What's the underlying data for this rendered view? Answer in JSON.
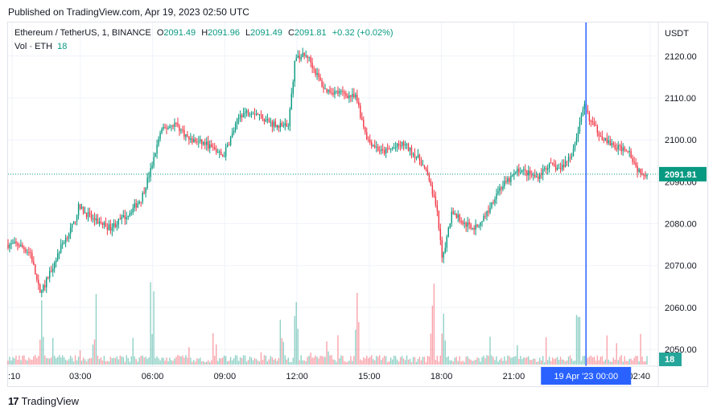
{
  "header": {
    "published": "Published on TradingView.com, Apr 19, 2023 02:50 UTC"
  },
  "legend": {
    "symbol": "Ethereum / TetherUS, 1, BINANCE",
    "open_label": "O",
    "open": "2091.49",
    "high_label": "H",
    "high": "2091.96",
    "low_label": "L",
    "low": "2091.49",
    "close_label": "C",
    "close": "2091.81",
    "change": "+0.32 (+0.02%)",
    "vol_label": "Vol · ETH",
    "vol_value": "18"
  },
  "footer": {
    "brand": "TradingView",
    "logo_text": "17"
  },
  "colors": {
    "up": "#089981",
    "down": "#f23645",
    "crosshair": "#2962ff",
    "grid": "#f0f3fa"
  },
  "chart_data": {
    "type": "candlestick",
    "currency": "USDT",
    "y_ticks": [
      "2120.00",
      "2110.00",
      "2100.00",
      "2090.00",
      "2080.00",
      "2070.00",
      "2060.00",
      "2050.00"
    ],
    "y_tick_values": [
      2120,
      2110,
      2100,
      2090,
      2080,
      2070,
      2060,
      2050
    ],
    "ylim": [
      2046,
      2128
    ],
    "x_ticks": [
      ":10",
      "03:00",
      "06:00",
      "09:00",
      "12:00",
      "15:00",
      "18:00",
      "21:00",
      "02:40"
    ],
    "x_tick_hours": [
      0.167,
      3,
      6,
      9,
      12,
      15,
      18,
      21,
      26.667
    ],
    "xlim_hours": [
      0,
      27.0
    ],
    "crosshair_label": "19 Apr '23   00:00",
    "crosshair_hour": 24,
    "last_price": "2091.81",
    "last_price_value": 2091.81,
    "last_volume": "18",
    "price_path": [
      [
        0.0,
        2075
      ],
      [
        0.5,
        2075
      ],
      [
        1.0,
        2073
      ],
      [
        1.4,
        2063
      ],
      [
        1.7,
        2067
      ],
      [
        2.3,
        2075
      ],
      [
        2.8,
        2080
      ],
      [
        3.0,
        2084
      ],
      [
        3.6,
        2081
      ],
      [
        4.3,
        2079
      ],
      [
        5.0,
        2082
      ],
      [
        5.6,
        2086
      ],
      [
        6.0,
        2093
      ],
      [
        6.4,
        2102
      ],
      [
        7.0,
        2104
      ],
      [
        7.6,
        2100
      ],
      [
        8.3,
        2099
      ],
      [
        9.0,
        2096
      ],
      [
        9.7,
        2106
      ],
      [
        10.2,
        2107
      ],
      [
        11.0,
        2104
      ],
      [
        11.7,
        2103
      ],
      [
        12.0,
        2120
      ],
      [
        12.5,
        2120
      ],
      [
        13.2,
        2112
      ],
      [
        14.0,
        2111
      ],
      [
        14.5,
        2110
      ],
      [
        15.0,
        2100
      ],
      [
        15.6,
        2097
      ],
      [
        16.5,
        2099
      ],
      [
        17.2,
        2095
      ],
      [
        17.6,
        2090
      ],
      [
        17.9,
        2082
      ],
      [
        18.1,
        2071
      ],
      [
        18.5,
        2083
      ],
      [
        19.0,
        2080
      ],
      [
        19.5,
        2079
      ],
      [
        20.0,
        2083
      ],
      [
        20.4,
        2088
      ],
      [
        20.8,
        2090
      ],
      [
        21.3,
        2093
      ],
      [
        22.0,
        2091
      ],
      [
        22.5,
        2094
      ],
      [
        23.0,
        2093
      ],
      [
        23.5,
        2097
      ],
      [
        24.0,
        2108
      ],
      [
        24.3,
        2104
      ],
      [
        24.7,
        2101
      ],
      [
        25.3,
        2098
      ],
      [
        25.8,
        2098
      ],
      [
        26.2,
        2093
      ],
      [
        26.6,
        2091.8
      ]
    ],
    "volume_spikes_hours": [
      1.4,
      3.6,
      6.0,
      11.4,
      12.0,
      14.5,
      17.6,
      18.1,
      23.7
    ]
  }
}
